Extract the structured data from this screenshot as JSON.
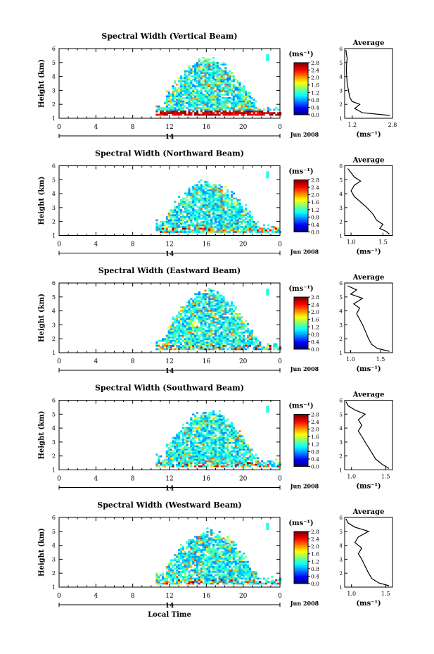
{
  "chart_data": [
    {
      "type": "heatmap",
      "title": "Spectral Width (Vertical Beam)",
      "ylabel": "Height (km)",
      "xlabel": "",
      "x_ticks": [
        "0",
        "4",
        "8",
        "12",
        "16",
        "20",
        "0"
      ],
      "y_ticks": [
        "1",
        "2",
        "3",
        "4",
        "5",
        "6"
      ],
      "xlim": [
        0,
        24
      ],
      "ylim": [
        1,
        6
      ],
      "date_label": "14",
      "month_label": "Jun 2008",
      "colorbar": {
        "unit": "(ms⁻¹)",
        "ticks": [
          "0.0",
          "0.4",
          "0.8",
          "1.2",
          "1.6",
          "2.0",
          "2.4",
          "2.8"
        ],
        "range": [
          0,
          2.8
        ]
      },
      "echo_region": {
        "t_start": 10.5,
        "t_end": 24,
        "h_min": 1.2,
        "h_max": 5.0,
        "high_near_ground": true
      },
      "average": {
        "title": "Average",
        "xlabel": "(ms⁻¹)",
        "x_ticks": [
          "1.2",
          "2.8"
        ],
        "xlim": [
          0.9,
          2.8
        ],
        "profile": [
          [
            1.2,
            2.7
          ],
          [
            1.4,
            1.6
          ],
          [
            1.7,
            1.3
          ],
          [
            2.0,
            1.5
          ],
          [
            2.2,
            1.2
          ],
          [
            2.5,
            1.1
          ],
          [
            3.0,
            1.05
          ],
          [
            3.5,
            1.0
          ],
          [
            4.0,
            0.98
          ],
          [
            4.5,
            0.97
          ],
          [
            5.0,
            0.98
          ],
          [
            5.3,
            1.0
          ],
          [
            5.6,
            0.97
          ],
          [
            5.9,
            0.95
          ]
        ]
      }
    },
    {
      "type": "heatmap",
      "title": "Spectral Width (Northward Beam)",
      "ylabel": "Height (km)",
      "xlabel": "",
      "x_ticks": [
        "0",
        "4",
        "8",
        "12",
        "16",
        "20",
        "0"
      ],
      "y_ticks": [
        "1",
        "2",
        "3",
        "4",
        "5",
        "6"
      ],
      "xlim": [
        0,
        24
      ],
      "ylim": [
        1,
        6
      ],
      "date_label": "14",
      "month_label": "Jun 2008",
      "colorbar": {
        "unit": "(ms⁻¹)",
        "ticks": [
          "0.0",
          "0.4",
          "0.8",
          "1.2",
          "1.6",
          "2.0",
          "2.4",
          "2.8"
        ],
        "range": [
          0,
          2.8
        ]
      },
      "echo_region": {
        "t_start": 10.5,
        "t_end": 24,
        "h_min": 1.2,
        "h_max": 4.6,
        "high_near_ground": false
      },
      "average": {
        "title": "Average",
        "xlabel": "(ms⁻¹)",
        "x_ticks": [
          "1.0",
          "1.5"
        ],
        "xlim": [
          0.9,
          1.65
        ],
        "profile": [
          [
            1.1,
            1.6
          ],
          [
            1.3,
            1.55
          ],
          [
            1.5,
            1.45
          ],
          [
            1.8,
            1.5
          ],
          [
            2.1,
            1.4
          ],
          [
            2.5,
            1.35
          ],
          [
            3.0,
            1.25
          ],
          [
            3.4,
            1.15
          ],
          [
            3.8,
            1.05
          ],
          [
            4.2,
            1.0
          ],
          [
            4.6,
            1.05
          ],
          [
            4.9,
            1.15
          ],
          [
            5.2,
            1.05
          ],
          [
            5.5,
            1.0
          ],
          [
            5.8,
            0.95
          ]
        ]
      }
    },
    {
      "type": "heatmap",
      "title": "Spectral Width (Eastward Beam)",
      "ylabel": "Height (km)",
      "xlabel": "",
      "x_ticks": [
        "0",
        "4",
        "8",
        "12",
        "16",
        "20",
        "0"
      ],
      "y_ticks": [
        "1",
        "2",
        "3",
        "4",
        "5",
        "6"
      ],
      "xlim": [
        0,
        24
      ],
      "ylim": [
        1,
        6
      ],
      "date_label": "14",
      "month_label": "Jun 2008",
      "colorbar": {
        "unit": "(ms⁻¹)",
        "ticks": [
          "0.0",
          "0.4",
          "0.8",
          "1.2",
          "1.6",
          "2.0",
          "2.4",
          "2.8"
        ],
        "range": [
          0,
          2.8
        ]
      },
      "echo_region": {
        "t_start": 10.5,
        "t_end": 24,
        "h_min": 1.2,
        "h_max": 5.2,
        "high_near_ground": false
      },
      "average": {
        "title": "Average",
        "xlabel": "(ms⁻¹)",
        "x_ticks": [
          "1.0",
          "1.5"
        ],
        "xlim": [
          0.9,
          1.7
        ],
        "profile": [
          [
            1.1,
            1.65
          ],
          [
            1.3,
            1.45
          ],
          [
            1.6,
            1.35
          ],
          [
            2.0,
            1.3
          ],
          [
            2.5,
            1.25
          ],
          [
            3.0,
            1.2
          ],
          [
            3.4,
            1.15
          ],
          [
            3.8,
            1.1
          ],
          [
            4.2,
            1.15
          ],
          [
            4.5,
            1.05
          ],
          [
            4.9,
            1.2
          ],
          [
            5.2,
            1.0
          ],
          [
            5.5,
            1.1
          ],
          [
            5.8,
            0.95
          ]
        ]
      }
    },
    {
      "type": "heatmap",
      "title": "Spectral Width (Southward Beam)",
      "ylabel": "Height (km)",
      "xlabel": "",
      "x_ticks": [
        "0",
        "4",
        "8",
        "12",
        "16",
        "20",
        "0"
      ],
      "y_ticks": [
        "1",
        "2",
        "3",
        "4",
        "5",
        "6"
      ],
      "xlim": [
        0,
        24
      ],
      "ylim": [
        1,
        6
      ],
      "date_label": "14",
      "month_label": "Jun 2008",
      "colorbar": {
        "unit": "(ms⁻¹)",
        "ticks": [
          "0.0",
          "0.4",
          "0.8",
          "1.2",
          "1.6",
          "2.0",
          "2.4",
          "2.8"
        ],
        "range": [
          0,
          2.8
        ]
      },
      "echo_region": {
        "t_start": 10.5,
        "t_end": 24,
        "h_min": 1.2,
        "h_max": 5.0,
        "high_near_ground": false
      },
      "average": {
        "title": "Average",
        "xlabel": "(ms⁻¹)",
        "x_ticks": [
          "1.0",
          "1.5"
        ],
        "xlim": [
          0.9,
          1.6
        ],
        "profile": [
          [
            1.1,
            1.55
          ],
          [
            1.4,
            1.45
          ],
          [
            1.8,
            1.35
          ],
          [
            2.2,
            1.3
          ],
          [
            2.6,
            1.25
          ],
          [
            3.0,
            1.2
          ],
          [
            3.4,
            1.15
          ],
          [
            3.8,
            1.1
          ],
          [
            4.2,
            1.15
          ],
          [
            4.6,
            1.1
          ],
          [
            5.0,
            1.2
          ],
          [
            5.3,
            1.05
          ],
          [
            5.6,
            0.95
          ],
          [
            5.9,
            0.92
          ]
        ]
      }
    },
    {
      "type": "heatmap",
      "title": "Spectral Width (Westward Beam)",
      "ylabel": "Height (km)",
      "xlabel": "Local Time",
      "x_ticks": [
        "0",
        "4",
        "8",
        "12",
        "16",
        "20",
        "0"
      ],
      "y_ticks": [
        "1",
        "2",
        "3",
        "4",
        "5",
        "6"
      ],
      "xlim": [
        0,
        24
      ],
      "ylim": [
        1,
        6
      ],
      "date_label": "14",
      "month_label": "Jun 2008",
      "colorbar": {
        "unit": "(ms⁻¹)",
        "ticks": [
          "0.0",
          "0.4",
          "0.8",
          "1.2",
          "1.6",
          "2.0",
          "2.4",
          "2.8"
        ],
        "range": [
          0,
          2.8
        ]
      },
      "echo_region": {
        "t_start": 10.5,
        "t_end": 24,
        "h_min": 1.2,
        "h_max": 4.8,
        "high_near_ground": false
      },
      "average": {
        "title": "Average",
        "xlabel": "(ms⁻¹)",
        "x_ticks": [
          "1.0",
          "1.5"
        ],
        "xlim": [
          0.9,
          1.6
        ],
        "profile": [
          [
            1.1,
            1.55
          ],
          [
            1.3,
            1.4
          ],
          [
            1.6,
            1.3
          ],
          [
            2.0,
            1.25
          ],
          [
            2.5,
            1.2
          ],
          [
            3.0,
            1.15
          ],
          [
            3.4,
            1.1
          ],
          [
            3.8,
            1.15
          ],
          [
            4.2,
            1.05
          ],
          [
            4.6,
            1.1
          ],
          [
            5.0,
            1.25
          ],
          [
            5.3,
            1.05
          ],
          [
            5.6,
            0.95
          ],
          [
            5.9,
            0.92
          ]
        ]
      }
    }
  ]
}
